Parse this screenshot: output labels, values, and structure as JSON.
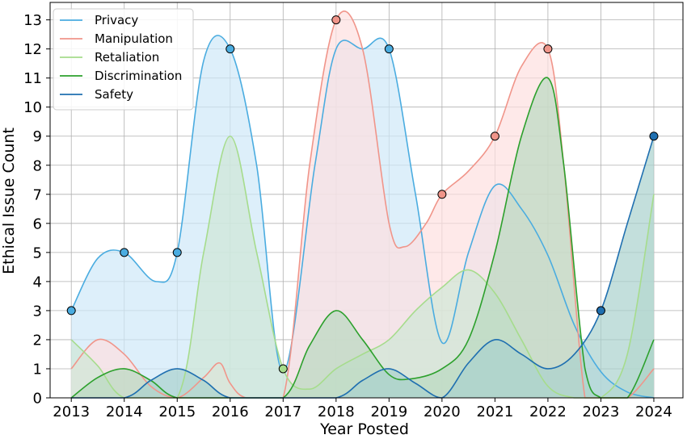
{
  "chart_data": {
    "type": "area",
    "xlabel": "Year Posted",
    "ylabel": "Ethical Issue Count",
    "x": [
      2013,
      2014,
      2015,
      2016,
      2017,
      2018,
      2019,
      2020,
      2021,
      2022,
      2023,
      2024
    ],
    "xlim": [
      2012.6,
      2024.55
    ],
    "ylim": [
      0,
      13.6
    ],
    "yticks": [
      0,
      1,
      2,
      3,
      4,
      5,
      6,
      7,
      8,
      9,
      10,
      11,
      12,
      13
    ],
    "grid": true,
    "legend_position": "top-left",
    "series": [
      {
        "name": "Privacy",
        "color": "#4aace0",
        "fill": "#cfe8f8",
        "points": [
          [
            2013,
            3
          ],
          [
            2013.5,
            4.8
          ],
          [
            2014,
            5
          ],
          [
            2014.6,
            4.0
          ],
          [
            2015,
            5
          ],
          [
            2015.5,
            11.6
          ],
          [
            2016,
            12
          ],
          [
            2016.5,
            8
          ],
          [
            2017,
            0.9
          ],
          [
            2017.6,
            8
          ],
          [
            2018,
            12
          ],
          [
            2018.5,
            12
          ],
          [
            2019,
            12
          ],
          [
            2019.5,
            7
          ],
          [
            2020,
            1.9
          ],
          [
            2020.5,
            5
          ],
          [
            2021,
            7.3
          ],
          [
            2021.5,
            6.5
          ],
          [
            2022,
            4.9
          ],
          [
            2022.5,
            2.5
          ],
          [
            2023,
            0.9
          ],
          [
            2023.5,
            0.2
          ],
          [
            2024,
            0
          ]
        ],
        "markers": [
          [
            2013,
            3
          ],
          [
            2014,
            5
          ],
          [
            2015,
            5
          ],
          [
            2016,
            12
          ],
          [
            2019,
            12
          ]
        ]
      },
      {
        "name": "Manipulation",
        "color": "#f0958a",
        "fill": "#fde0e0",
        "points": [
          [
            2013,
            1
          ],
          [
            2013.5,
            2
          ],
          [
            2014,
            1.5
          ],
          [
            2014.5,
            0.4
          ],
          [
            2015,
            0
          ],
          [
            2015.5,
            0.7
          ],
          [
            2015.8,
            1.2
          ],
          [
            2016,
            0.5
          ],
          [
            2016.3,
            0
          ],
          [
            2017,
            0
          ],
          [
            2017.5,
            8
          ],
          [
            2018,
            13
          ],
          [
            2018.5,
            12
          ],
          [
            2019,
            6
          ],
          [
            2019.3,
            5.2
          ],
          [
            2019.7,
            6
          ],
          [
            2020,
            7
          ],
          [
            2020.5,
            7.8
          ],
          [
            2021,
            9
          ],
          [
            2021.5,
            11.4
          ],
          [
            2022,
            12
          ],
          [
            2022.3,
            8
          ],
          [
            2022.7,
            0
          ],
          [
            2023,
            0
          ],
          [
            2023.5,
            0
          ],
          [
            2024,
            1
          ]
        ],
        "markers": [
          [
            2018,
            13
          ],
          [
            2020,
            7
          ],
          [
            2021,
            9
          ],
          [
            2022,
            12
          ]
        ]
      },
      {
        "name": "Retaliation",
        "color": "#a6dc8c",
        "fill": "#cfe7d6",
        "points": [
          [
            2013,
            2
          ],
          [
            2013.5,
            1.1
          ],
          [
            2014,
            0
          ],
          [
            2015,
            0
          ],
          [
            2015.5,
            5
          ],
          [
            2016,
            9
          ],
          [
            2016.5,
            5
          ],
          [
            2017,
            1
          ],
          [
            2017.5,
            0.3
          ],
          [
            2018,
            1
          ],
          [
            2018.5,
            1.5
          ],
          [
            2019,
            2
          ],
          [
            2019.5,
            3
          ],
          [
            2020,
            3.8
          ],
          [
            2020.5,
            4.4
          ],
          [
            2021,
            3.6
          ],
          [
            2021.5,
            2
          ],
          [
            2022,
            0.4
          ],
          [
            2022.5,
            0
          ],
          [
            2023,
            0
          ],
          [
            2023.5,
            1.5
          ],
          [
            2024,
            7
          ]
        ],
        "markers": [
          [
            2017,
            1
          ]
        ]
      },
      {
        "name": "Discrimination",
        "color": "#2ca02c",
        "fill": "#b9d8c1",
        "points": [
          [
            2013,
            0
          ],
          [
            2013.5,
            0.7
          ],
          [
            2014,
            1
          ],
          [
            2014.5,
            0.6
          ],
          [
            2015,
            0
          ],
          [
            2016,
            0
          ],
          [
            2017,
            0
          ],
          [
            2017.5,
            1.8
          ],
          [
            2018,
            3
          ],
          [
            2018.5,
            2
          ],
          [
            2019,
            0.8
          ],
          [
            2019.4,
            0.65
          ],
          [
            2020,
            1
          ],
          [
            2020.5,
            2
          ],
          [
            2021,
            5
          ],
          [
            2021.5,
            9
          ],
          [
            2022,
            11
          ],
          [
            2022.3,
            8
          ],
          [
            2022.7,
            1
          ],
          [
            2023,
            0
          ],
          [
            2023.5,
            0
          ],
          [
            2024,
            2
          ]
        ],
        "markers": []
      },
      {
        "name": "Safety",
        "color": "#1f6fb0",
        "fill": "#a9d2cd",
        "points": [
          [
            2013,
            0
          ],
          [
            2014,
            0
          ],
          [
            2014.5,
            0.6
          ],
          [
            2015,
            1
          ],
          [
            2015.5,
            0.6
          ],
          [
            2016,
            0
          ],
          [
            2017,
            0
          ],
          [
            2018,
            0
          ],
          [
            2018.5,
            0.6
          ],
          [
            2019,
            1
          ],
          [
            2019.5,
            0.5
          ],
          [
            2020,
            0
          ],
          [
            2020.5,
            1.2
          ],
          [
            2021,
            2
          ],
          [
            2021.5,
            1.5
          ],
          [
            2022,
            1
          ],
          [
            2022.5,
            1.5
          ],
          [
            2023,
            3
          ],
          [
            2023.5,
            6
          ],
          [
            2024,
            9
          ]
        ],
        "markers": [
          [
            2023,
            3
          ],
          [
            2024,
            9
          ]
        ]
      }
    ]
  }
}
